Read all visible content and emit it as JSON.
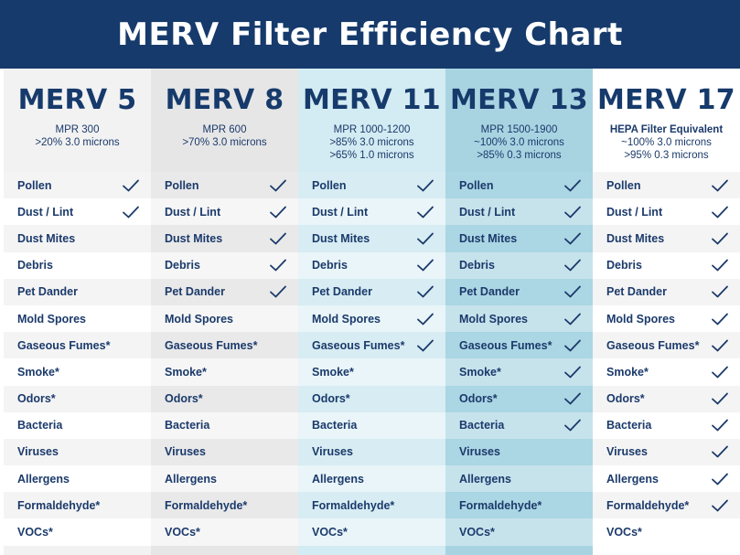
{
  "title": "MERV Filter Efficiency Chart",
  "colors": {
    "title_bg": "#163a6b",
    "text": "#1b3a6b",
    "check": "#1b3a6b"
  },
  "chart_data": {
    "type": "table",
    "rows": [
      "Pollen",
      "Dust / Lint",
      "Dust Mites",
      "Debris",
      "Pet Dander",
      "Mold Spores",
      "Gaseous Fumes*",
      "Smoke*",
      "Odors*",
      "Bacteria",
      "Viruses",
      "Allergens",
      "Formaldehyde*",
      "VOCs*"
    ],
    "columns": [
      {
        "name": "MERV 5",
        "sub": [
          {
            "text": "MPR 300",
            "bold": false
          },
          {
            "text": ">20% 3.0 microns",
            "bold": false
          }
        ],
        "bg": "#f2f2f2",
        "row_bg_a": "#f4f4f4",
        "row_bg_b": "#ffffff",
        "checks": [
          true,
          true,
          false,
          false,
          false,
          false,
          false,
          false,
          false,
          false,
          false,
          false,
          false,
          false
        ]
      },
      {
        "name": "MERV 8",
        "sub": [
          {
            "text": "MPR 600",
            "bold": false
          },
          {
            "text": ">70% 3.0 microns",
            "bold": false
          }
        ],
        "bg": "#e6e6e6",
        "row_bg_a": "#e9e9e9",
        "row_bg_b": "#f6f6f6",
        "checks": [
          true,
          true,
          true,
          true,
          true,
          false,
          false,
          false,
          false,
          false,
          false,
          false,
          false,
          false
        ]
      },
      {
        "name": "MERV 11",
        "sub": [
          {
            "text": "MPR 1000-1200",
            "bold": false
          },
          {
            "text": ">85% 3.0 microns",
            "bold": false
          },
          {
            "text": ">65% 1.0 microns",
            "bold": false
          }
        ],
        "bg": "#d3ebf2",
        "row_bg_a": "#d7edf3",
        "row_bg_b": "#e9f5f8",
        "checks": [
          true,
          true,
          true,
          true,
          true,
          true,
          true,
          false,
          false,
          false,
          false,
          false,
          false,
          false
        ]
      },
      {
        "name": "MERV 13",
        "sub": [
          {
            "text": "MPR 1500-1900",
            "bold": false
          },
          {
            "text": "~100% 3.0 microns",
            "bold": false
          },
          {
            "text": ">85% 0.3 microns",
            "bold": false
          }
        ],
        "bg": "#a8d4e2",
        "row_bg_a": "#abd6e3",
        "row_bg_b": "#c6e3ec",
        "checks": [
          true,
          true,
          true,
          true,
          true,
          true,
          true,
          true,
          true,
          true,
          false,
          false,
          false,
          false
        ]
      },
      {
        "name": "MERV 17",
        "sub": [
          {
            "text": "HEPA Filter Equivalent",
            "bold": true
          },
          {
            "text": "~100% 3.0 microns",
            "bold": false
          },
          {
            "text": ">95% 0.3 microns",
            "bold": false
          }
        ],
        "bg": "#ffffff",
        "row_bg_a": "#f4f4f4",
        "row_bg_b": "#ffffff",
        "checks": [
          true,
          true,
          true,
          true,
          true,
          true,
          true,
          true,
          true,
          true,
          true,
          true,
          true,
          false
        ]
      }
    ]
  }
}
